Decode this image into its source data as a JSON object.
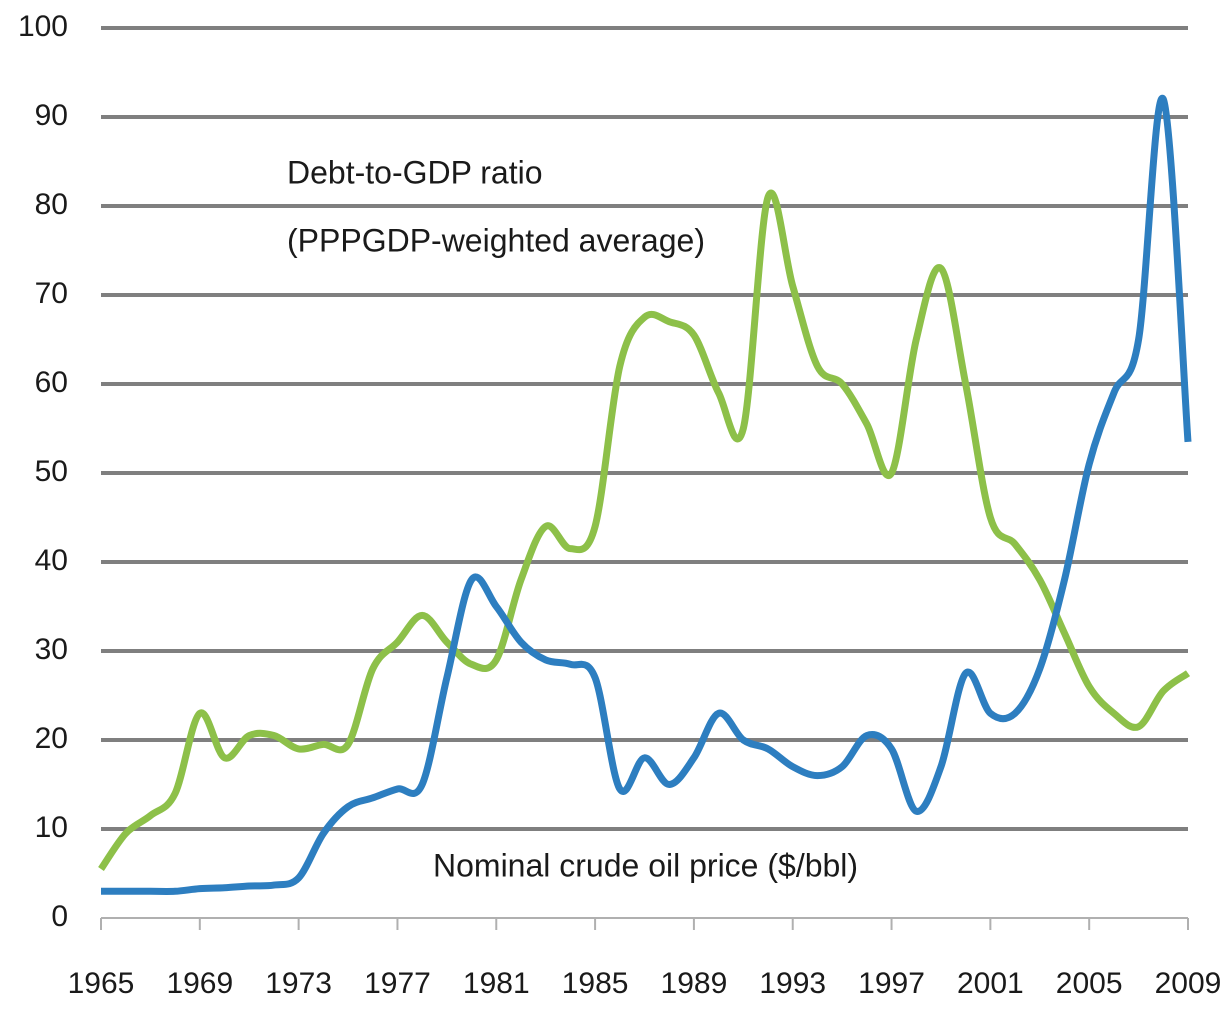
{
  "chart_data": {
    "type": "line",
    "annotations": [
      "Debt-to-GDP ratio",
      "(PPPGDP-weighted average)",
      "Nominal crude oil price ($/bbl)"
    ],
    "x": [
      1965,
      1966,
      1967,
      1968,
      1969,
      1970,
      1971,
      1972,
      1973,
      1974,
      1975,
      1976,
      1977,
      1978,
      1979,
      1980,
      1981,
      1982,
      1983,
      1984,
      1985,
      1986,
      1987,
      1988,
      1989,
      1990,
      1991,
      1992,
      1993,
      1994,
      1995,
      1996,
      1997,
      1998,
      1999,
      2000,
      2001,
      2002,
      2003,
      2004,
      2005,
      2006,
      2007,
      2008,
      2009
    ],
    "series": [
      {
        "color": "#8dc049",
        "values": [
          5.5,
          9.5,
          11.5,
          14,
          23,
          18,
          20.5,
          20.5,
          19,
          19.5,
          19.5,
          28,
          31,
          34,
          31,
          28.5,
          29,
          38,
          44,
          41.5,
          44,
          62,
          67.5,
          67,
          65.5,
          59,
          55,
          81,
          71,
          62,
          60,
          55.5,
          50,
          65,
          73,
          60,
          45,
          42,
          38,
          32,
          26,
          23,
          21.5,
          25.5,
          27.5
        ]
      },
      {
        "color": "#2d7ec0",
        "values": [
          3,
          3,
          3,
          3,
          3.3,
          3.4,
          3.6,
          3.7,
          4.5,
          9.5,
          12.5,
          13.5,
          14.5,
          15,
          27,
          38,
          35,
          31,
          29,
          28.5,
          27,
          14.5,
          18,
          15,
          18,
          23,
          20,
          19,
          17,
          16,
          17,
          20.5,
          19,
          12,
          17,
          27.5,
          23,
          23,
          28,
          38,
          51,
          59,
          65,
          92,
          53.5
        ]
      }
    ],
    "xlim": [
      1965,
      2009
    ],
    "xticks": [
      1965,
      1969,
      1973,
      1977,
      1981,
      1985,
      1989,
      1993,
      1997,
      2001,
      2005,
      2009
    ],
    "ylim": [
      0,
      100
    ],
    "yticks": [
      0,
      10,
      20,
      30,
      40,
      50,
      60,
      70,
      80,
      90,
      100
    ],
    "grid": true
  }
}
